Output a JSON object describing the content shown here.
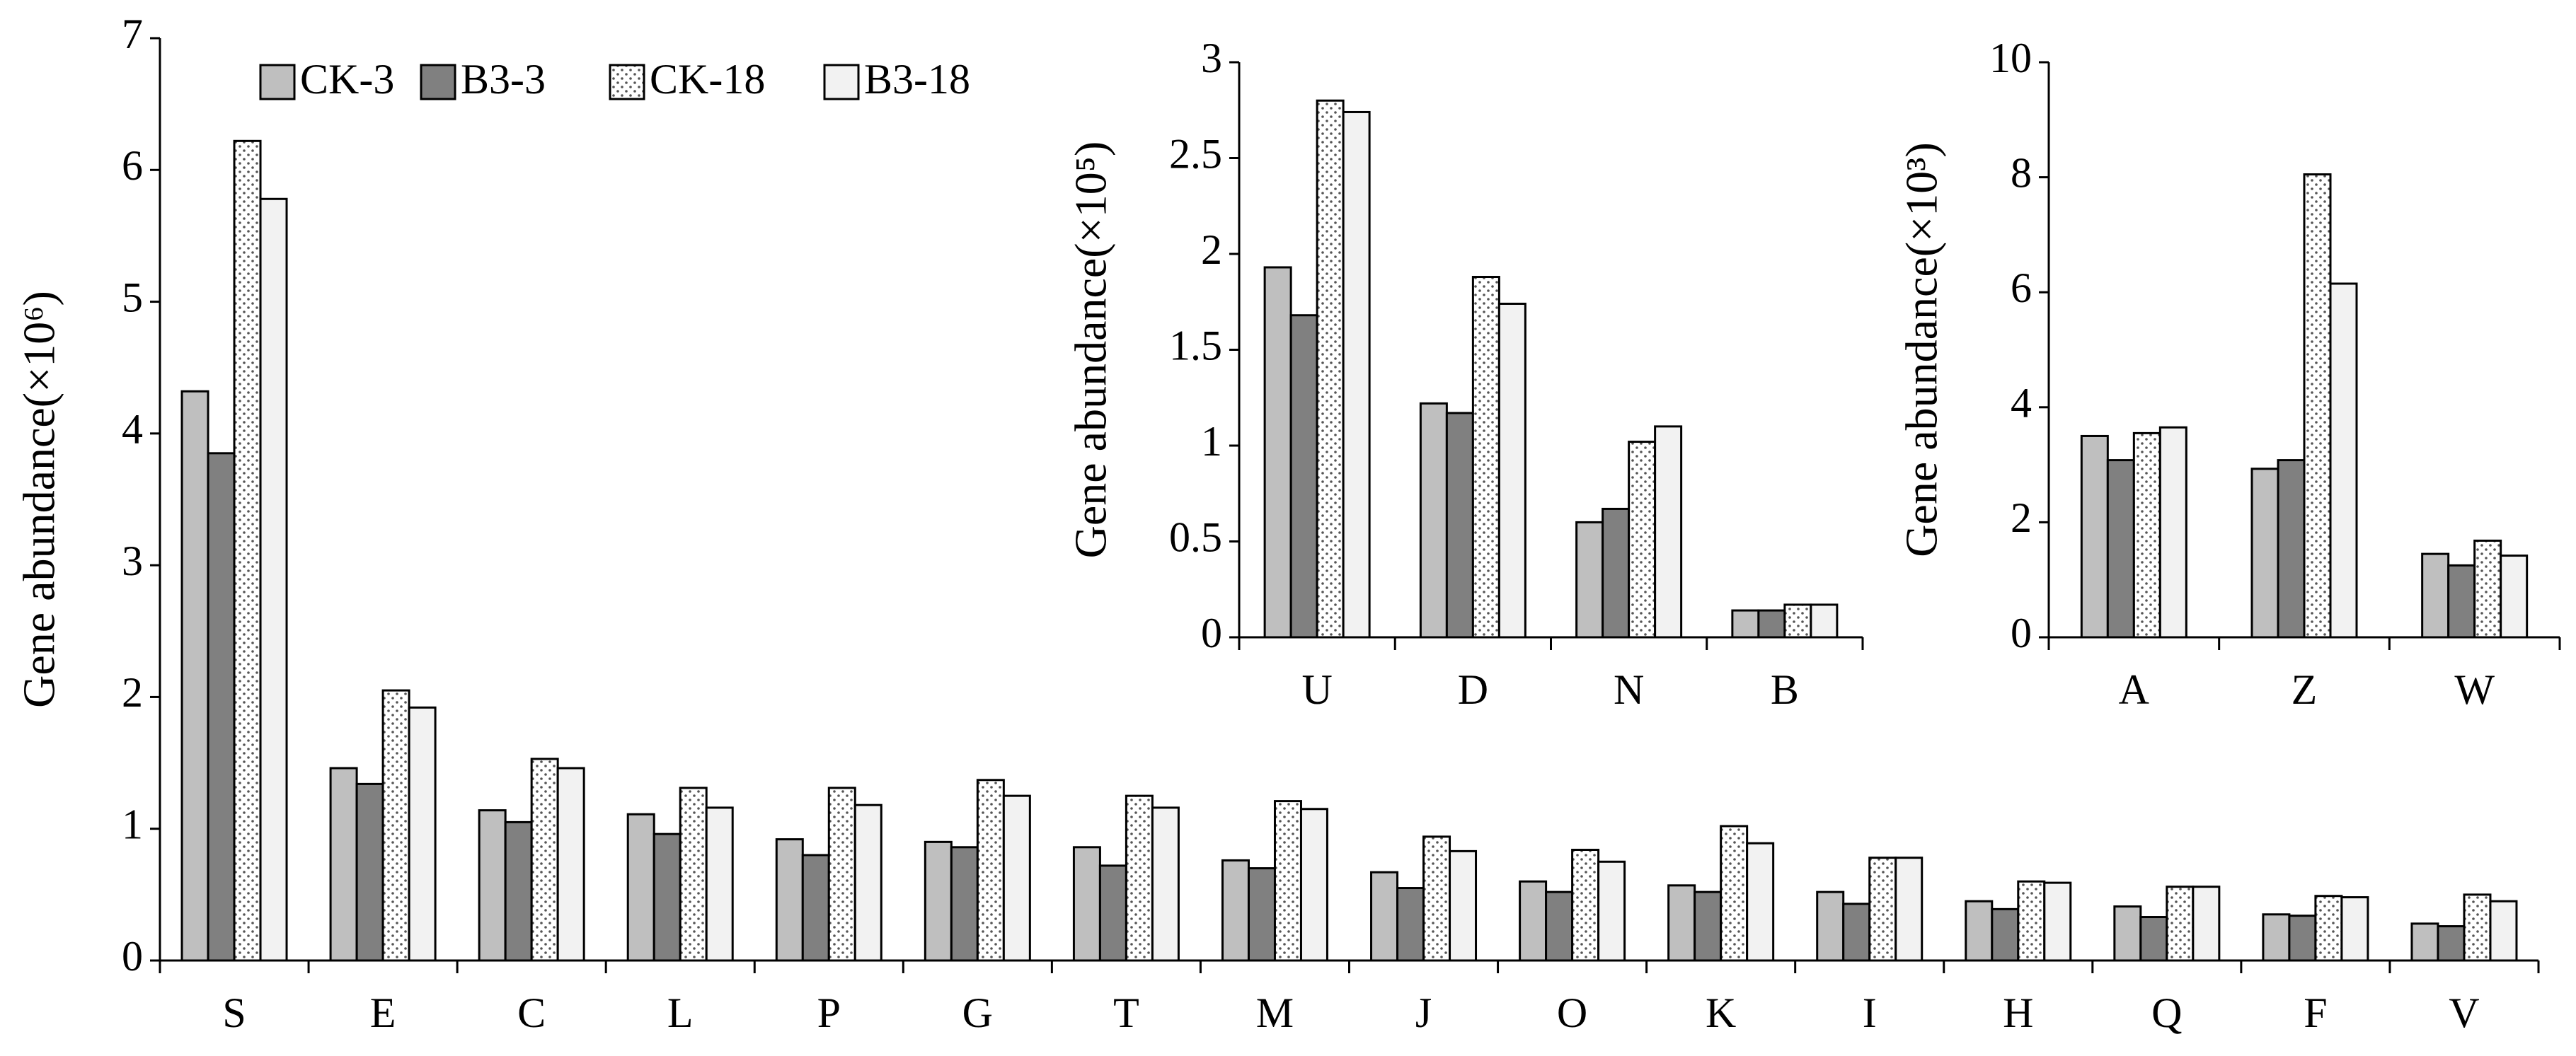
{
  "chart_data": [
    {
      "type": "bar",
      "y_label": "Gene abundance(×10⁶)",
      "categories": [
        "S",
        "E",
        "C",
        "L",
        "P",
        "G",
        "T",
        "M",
        "J",
        "O",
        "K",
        "I",
        "H",
        "Q",
        "F",
        "V"
      ],
      "series": [
        {
          "name": "CK-3",
          "color": "#bfbfbf",
          "values": [
            4.32,
            1.46,
            1.14,
            1.11,
            0.92,
            0.9,
            0.86,
            0.76,
            0.67,
            0.6,
            0.57,
            0.52,
            0.45,
            0.41,
            0.35,
            0.28
          ]
        },
        {
          "name": "B3-3",
          "color": "#808080",
          "values": [
            3.85,
            1.34,
            1.05,
            0.96,
            0.8,
            0.86,
            0.72,
            0.7,
            0.55,
            0.52,
            0.52,
            0.43,
            0.39,
            0.33,
            0.34,
            0.26
          ]
        },
        {
          "name": "CK-18",
          "color": "#ffffff",
          "pattern": "dotted",
          "values": [
            6.22,
            2.05,
            1.53,
            1.31,
            1.31,
            1.37,
            1.25,
            1.21,
            0.94,
            0.84,
            1.02,
            0.78,
            0.6,
            0.56,
            0.49,
            0.5
          ]
        },
        {
          "name": "B3-18",
          "color": "#f2f2f2",
          "values": [
            5.78,
            1.92,
            1.46,
            1.16,
            1.18,
            1.25,
            1.16,
            1.15,
            0.83,
            0.75,
            0.89,
            0.78,
            0.59,
            0.56,
            0.48,
            0.45
          ]
        }
      ],
      "ylim": [
        0,
        7
      ],
      "yticks": [
        0,
        1,
        2,
        3,
        4,
        5,
        6,
        7
      ],
      "legend": "top-left"
    },
    {
      "type": "bar",
      "y_label": "Gene abundance(×10⁵)",
      "categories": [
        "U",
        "D",
        "N",
        "B"
      ],
      "series": [
        {
          "color": "#bfbfbf",
          "values": [
            1.93,
            1.22,
            0.6,
            0.14
          ]
        },
        {
          "color": "#808080",
          "values": [
            1.68,
            1.17,
            0.67,
            0.14
          ]
        },
        {
          "color": "#ffffff",
          "pattern": "dotted",
          "values": [
            2.8,
            1.88,
            1.02,
            0.17
          ]
        },
        {
          "color": "#f2f2f2",
          "values": [
            2.74,
            1.74,
            1.1,
            0.17
          ]
        }
      ],
      "ylim": [
        0,
        3
      ],
      "yticks": [
        0,
        0.5,
        1,
        1.5,
        2,
        2.5,
        3
      ]
    },
    {
      "type": "bar",
      "y_label": "Gene abundance(×10³)",
      "categories": [
        "A",
        "Z",
        "W"
      ],
      "series": [
        {
          "color": "#bfbfbf",
          "values": [
            3.5,
            2.93,
            1.45
          ]
        },
        {
          "color": "#808080",
          "values": [
            3.08,
            3.08,
            1.25
          ]
        },
        {
          "color": "#ffffff",
          "pattern": "dotted",
          "values": [
            3.55,
            8.05,
            1.68
          ]
        },
        {
          "color": "#f2f2f2",
          "values": [
            3.65,
            6.15,
            1.42
          ]
        }
      ],
      "ylim": [
        0,
        10
      ],
      "yticks": [
        0,
        2,
        4,
        6,
        8,
        10
      ]
    }
  ]
}
